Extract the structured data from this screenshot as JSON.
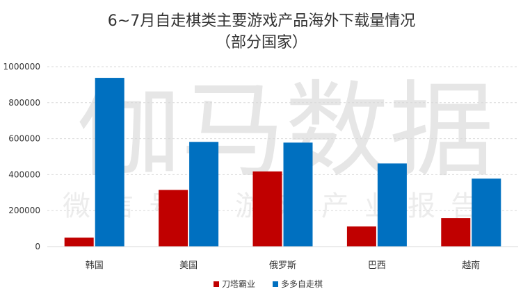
{
  "chart_data": {
    "type": "bar",
    "title": "6~7月自走棋类主要游戏产品海外下载量情况",
    "subtitle": "（部分国家）",
    "categories": [
      "韩国",
      "美国",
      "俄罗斯",
      "巴西",
      "越南"
    ],
    "series": [
      {
        "name": "刀塔霸业",
        "color": "#C00000",
        "values": [
          50000,
          315000,
          418000,
          112000,
          158000
        ]
      },
      {
        "name": "多多自走棋",
        "color": "#0070C0",
        "values": [
          938000,
          582000,
          578000,
          462000,
          378000
        ]
      }
    ],
    "yticks": [
      "0",
      "200000",
      "400000",
      "600000",
      "800000",
      "1000000"
    ],
    "ylim": [
      0,
      1000000
    ],
    "grid": true,
    "legend_position": "bottom"
  },
  "watermark": {
    "main": "伽马数据",
    "sub": "微信号：游戏产业报告"
  }
}
